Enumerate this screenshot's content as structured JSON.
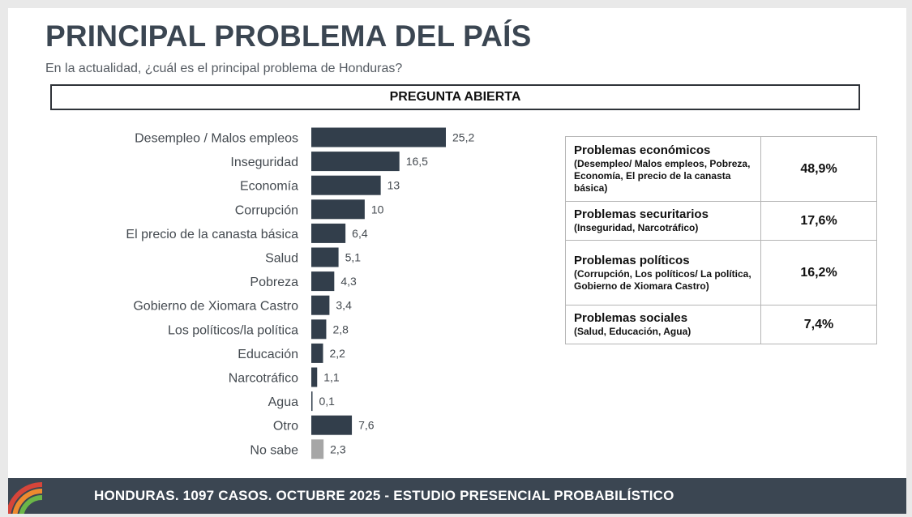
{
  "title": "PRINCIPAL PROBLEMA DEL PAÍS",
  "subtitle": "En la actualidad, ¿cuál es el principal problema de Honduras?",
  "question_type": "PREGUNTA ABIERTA",
  "chart_data": {
    "type": "bar",
    "orientation": "horizontal",
    "categories": [
      "Desempleo / Malos empleos",
      "Inseguridad",
      "Economía",
      "Corrupción",
      "El precio de la canasta básica",
      "Salud",
      "Pobreza",
      "Gobierno de Xiomara Castro",
      "Los políticos/la política",
      "Educación",
      "Narcotráfico",
      "Agua",
      "Otro",
      "No sabe"
    ],
    "values": [
      25.2,
      16.5,
      13,
      10,
      6.4,
      5.1,
      4.3,
      3.4,
      2.8,
      2.2,
      1.1,
      0.1,
      7.6,
      2.3
    ],
    "value_labels": [
      "25,2",
      "16,5",
      "13",
      "10",
      "6,4",
      "5,1",
      "4,3",
      "3,4",
      "2,8",
      "2,2",
      "1,1",
      "0,1",
      "7,6",
      "2,3"
    ],
    "colors": [
      "#323e4b",
      "#323e4b",
      "#323e4b",
      "#323e4b",
      "#323e4b",
      "#323e4b",
      "#323e4b",
      "#323e4b",
      "#323e4b",
      "#323e4b",
      "#323e4b",
      "#323e4b",
      "#323e4b",
      "#a6a6a6"
    ],
    "xlim": [
      0,
      25.2
    ],
    "unit": "%"
  },
  "summary_table": [
    {
      "name": "Problemas económicos",
      "detail": "(Desempleo/ Malos empleos, Pobreza, Economía, El precio de la canasta básica)",
      "value": "48,9%"
    },
    {
      "name": "Problemas securitarios",
      "detail": "(Inseguridad, Narcotráfico)",
      "value": "17,6%"
    },
    {
      "name": "Problemas políticos",
      "detail": "(Corrupción, Los políticos/ La política, Gobierno de Xiomara Castro)",
      "value": "16,2%"
    },
    {
      "name": "Problemas sociales",
      "detail": "(Salud, Educación, Agua)",
      "value": "7,4%"
    }
  ],
  "footer": "HONDURAS. 1097 CASOS. OCTUBRE 2025 - ESTUDIO PRESENCIAL PROBABILÍSTICO",
  "colors": {
    "dark": "#3b4652",
    "bar": "#323e4b",
    "gray_bar": "#a6a6a6",
    "logo_red": "#d6453a",
    "logo_orange": "#ee8a2f",
    "logo_green": "#6bb648"
  }
}
